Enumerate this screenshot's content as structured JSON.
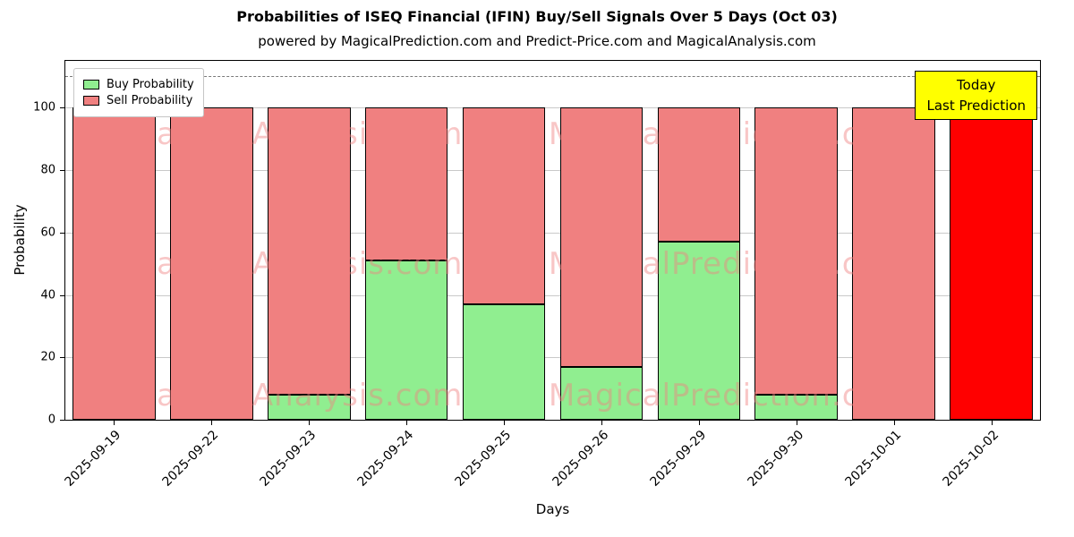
{
  "header": {
    "title": "Probabilities of ISEQ Financial (IFIN) Buy/Sell Signals Over 5 Days (Oct 03)",
    "subtitle": "powered by MagicalPrediction.com and Predict-Price.com and MagicalAnalysis.com"
  },
  "legend": {
    "items": [
      {
        "label": "Buy Probability",
        "color": "#90ee90"
      },
      {
        "label": "Sell Probability",
        "color": "#f08080"
      }
    ]
  },
  "annotation_box": {
    "line1": "Today",
    "line2": "Last Prediction",
    "bg_color": "#ffff00"
  },
  "watermarks": {
    "left_text": "MagicalAnalysis.com",
    "right_text": "MagicalPrediction.com",
    "color": "rgba(240,128,128,0.45)"
  },
  "chart_data": {
    "type": "bar",
    "stacked": true,
    "title": "Probabilities of ISEQ Financial (IFIN) Buy/Sell Signals Over 5 Days (Oct 03)",
    "xlabel": "Days",
    "ylabel": "Probability",
    "categories": [
      "2025-09-19",
      "2025-09-22",
      "2025-09-23",
      "2025-09-24",
      "2025-09-25",
      "2025-09-26",
      "2025-09-29",
      "2025-09-30",
      "2025-10-01",
      "2025-10-02"
    ],
    "series": [
      {
        "name": "Buy Probability",
        "color": "#90ee90",
        "values": [
          0,
          0,
          8,
          51,
          37,
          17,
          57,
          8,
          0,
          0
        ]
      },
      {
        "name": "Sell Probability",
        "color": "#f08080",
        "values": [
          100,
          100,
          92,
          49,
          63,
          83,
          43,
          92,
          100,
          100
        ]
      }
    ],
    "last_bar_color": "#ff0000",
    "bar_edge_color": "#000000",
    "yticks": [
      0,
      20,
      40,
      60,
      80,
      100
    ],
    "ylim": [
      0,
      115
    ],
    "dashed_line_y": 110,
    "grid": "horizontal",
    "legend_position": "upper left"
  }
}
